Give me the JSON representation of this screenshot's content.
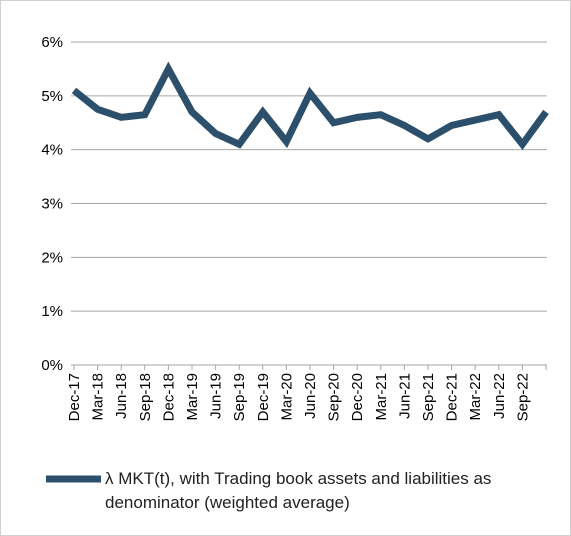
{
  "chart_data": {
    "type": "line",
    "categories": [
      "Dec-17",
      "Mar-18",
      "Jun-18",
      "Sep-18",
      "Dec-18",
      "Mar-19",
      "Jun-19",
      "Sep-19",
      "Dec-19",
      "Mar-20",
      "Jun-20",
      "Sep-20",
      "Dec-20",
      "Mar-21",
      "Jun-21",
      "Sep-21",
      "Dec-21",
      "Mar-22",
      "Jun-22",
      "Sep-22",
      null
    ],
    "series": [
      {
        "name": "λ MKT(t), with Trading book assets and liabilities as denominator (weighted average)",
        "color": "#2c4f6b",
        "values": [
          5.1,
          4.75,
          4.6,
          4.65,
          5.5,
          4.7,
          4.3,
          4.1,
          4.7,
          4.15,
          5.05,
          4.5,
          4.6,
          4.65,
          4.45,
          4.2,
          4.45,
          4.55,
          4.65,
          4.1,
          4.7
        ]
      }
    ],
    "ylim": [
      0,
      6
    ],
    "yticks": [
      {
        "value": 0,
        "label": "0%"
      },
      {
        "value": 1,
        "label": "1%"
      },
      {
        "value": 2,
        "label": "2%"
      },
      {
        "value": 3,
        "label": "3%"
      },
      {
        "value": 4,
        "label": "4%"
      },
      {
        "value": 5,
        "label": "5%"
      },
      {
        "value": 6,
        "label": "6%"
      }
    ],
    "grid": true,
    "legend": "bottom"
  }
}
